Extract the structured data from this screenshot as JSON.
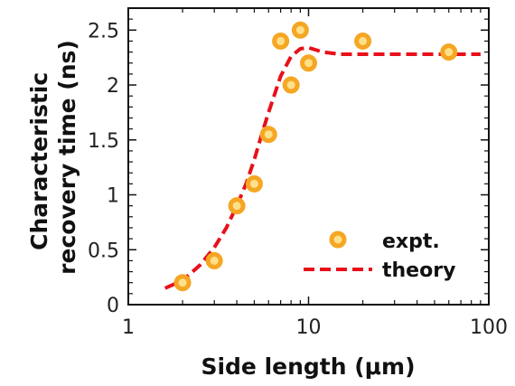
{
  "chart_data": {
    "type": "scatter",
    "xlabel": "Side length (μm)",
    "ylabel_lines": [
      "Characteristic",
      "recovery time (ns)"
    ],
    "xscale": "log",
    "xlim": [
      1,
      100
    ],
    "ylim": [
      0,
      2.7
    ],
    "x_ticks": [
      1,
      10,
      100
    ],
    "x_tick_labels": [
      "1",
      "10",
      "100"
    ],
    "y_ticks": [
      0,
      0.5,
      1,
      1.5,
      2,
      2.5
    ],
    "y_tick_labels": [
      "0",
      "0.5",
      "1",
      "1.5",
      "2",
      "2.5"
    ],
    "grid": false,
    "legend_position": "bottom-right",
    "series": [
      {
        "name": "expt.",
        "kind": "markers",
        "color": "#f5a623",
        "points": [
          {
            "x": 2,
            "y": 0.2
          },
          {
            "x": 3,
            "y": 0.4
          },
          {
            "x": 4,
            "y": 0.9
          },
          {
            "x": 5,
            "y": 1.1
          },
          {
            "x": 6,
            "y": 1.55
          },
          {
            "x": 7,
            "y": 2.4
          },
          {
            "x": 8,
            "y": 2.0
          },
          {
            "x": 9,
            "y": 2.5
          },
          {
            "x": 10,
            "y": 2.2
          },
          {
            "x": 20,
            "y": 2.4
          },
          {
            "x": 60,
            "y": 2.3
          }
        ]
      },
      {
        "name": "theory",
        "kind": "dashed-line",
        "color": "#e8101a",
        "points": [
          {
            "x": 1.6,
            "y": 0.15
          },
          {
            "x": 2,
            "y": 0.22
          },
          {
            "x": 2.5,
            "y": 0.36
          },
          {
            "x": 3,
            "y": 0.52
          },
          {
            "x": 3.5,
            "y": 0.7
          },
          {
            "x": 4,
            "y": 0.9
          },
          {
            "x": 4.5,
            "y": 1.1
          },
          {
            "x": 5,
            "y": 1.32
          },
          {
            "x": 5.5,
            "y": 1.55
          },
          {
            "x": 6,
            "y": 1.75
          },
          {
            "x": 7,
            "y": 2.08
          },
          {
            "x": 8,
            "y": 2.26
          },
          {
            "x": 9,
            "y": 2.33
          },
          {
            "x": 10,
            "y": 2.34
          },
          {
            "x": 12,
            "y": 2.3
          },
          {
            "x": 15,
            "y": 2.28
          },
          {
            "x": 30,
            "y": 2.28
          },
          {
            "x": 60,
            "y": 2.28
          },
          {
            "x": 90,
            "y": 2.28
          }
        ]
      }
    ]
  }
}
